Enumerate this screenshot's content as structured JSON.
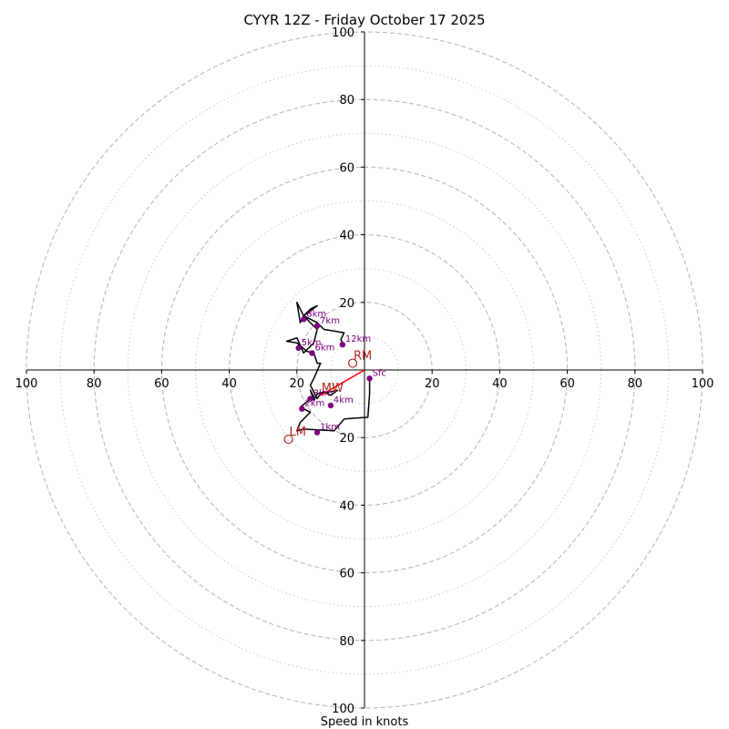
{
  "chart_data": {
    "type": "line",
    "title": "CYYR 12Z - Friday October 17 2025",
    "xlabel": "Speed in knots",
    "ylabel": "",
    "xlim": [
      -100,
      100
    ],
    "ylim": [
      -100,
      100
    ],
    "ring_major": [
      20,
      40,
      60,
      80,
      100
    ],
    "ring_minor": [
      10,
      30,
      50,
      70,
      90
    ],
    "x_tick_values": [
      -100,
      -80,
      -60,
      -40,
      -20,
      20,
      40,
      60,
      80,
      100
    ],
    "x_tick_labels": [
      "100",
      "80",
      "60",
      "40",
      "20",
      "20",
      "40",
      "60",
      "80",
      "100"
    ],
    "y_tick_values": [
      100,
      80,
      60,
      40,
      20,
      -20,
      -40,
      -60,
      -80,
      -100
    ],
    "y_tick_labels": [
      "100",
      "80",
      "60",
      "40",
      "20",
      "20",
      "40",
      "60",
      "80",
      "100"
    ],
    "grid": true,
    "hodograph": {
      "color": "#000000",
      "points": [
        [
          1.5,
          -2.5
        ],
        [
          1.5,
          -7
        ],
        [
          1,
          -14
        ],
        [
          -6,
          -14.5
        ],
        [
          -9,
          -18
        ],
        [
          -18,
          -17.5
        ],
        [
          -20,
          -18
        ],
        [
          -19,
          -15.5
        ],
        [
          -16,
          -12.5
        ],
        [
          -19,
          -11
        ],
        [
          -16.5,
          -9
        ],
        [
          -15,
          -8
        ],
        [
          -16,
          -6
        ],
        [
          -15,
          -9
        ],
        [
          -14,
          -7
        ],
        [
          -12,
          -6.5
        ],
        [
          -10,
          -7.5
        ],
        [
          -8,
          -6
        ],
        [
          -13,
          -7
        ],
        [
          -14,
          -8.5
        ],
        [
          -16,
          -4.5
        ],
        [
          -15,
          -2.5
        ],
        [
          -13,
          2
        ],
        [
          -14,
          2
        ],
        [
          -15,
          5
        ],
        [
          -17,
          5.5
        ],
        [
          -20,
          8
        ],
        [
          -23,
          8.5
        ],
        [
          -20,
          9.5
        ],
        [
          -18,
          5
        ],
        [
          -15,
          8
        ],
        [
          -14,
          12
        ],
        [
          -16,
          14
        ],
        [
          -18,
          16
        ],
        [
          -16,
          18
        ],
        [
          -14,
          19
        ],
        [
          -18,
          16
        ],
        [
          -19,
          14
        ],
        [
          -20,
          20
        ],
        [
          -18,
          16
        ],
        [
          -14,
          14
        ],
        [
          -12,
          12
        ],
        [
          -9,
          11.5
        ],
        [
          -6,
          11
        ],
        [
          -7,
          9
        ],
        [
          -6,
          7
        ]
      ]
    },
    "height_markers": {
      "color": "#800080",
      "points": [
        {
          "label": "Sfc",
          "u": 1.5,
          "v": -2.5
        },
        {
          "label": "1km",
          "u": -14,
          "v": -18.5
        },
        {
          "label": "2km",
          "u": -18.5,
          "v": -11.5
        },
        {
          "label": "3km",
          "u": -16,
          "v": -8.5
        },
        {
          "label": "4km",
          "u": -10,
          "v": -10.5
        },
        {
          "label": "5km",
          "u": -19.5,
          "v": 6.5
        },
        {
          "label": "6km",
          "u": -15.5,
          "v": 5
        },
        {
          "label": "7km",
          "u": -14,
          "v": 13
        },
        {
          "label": "8km",
          "u": -18,
          "v": 15
        },
        {
          "label": "12km",
          "u": -6.5,
          "v": 7.5
        }
      ]
    },
    "storm_motion": {
      "color": "#b22222",
      "line_color": "#ff0000",
      "points": [
        {
          "label": "RM",
          "u": -3.5,
          "v": 2
        },
        {
          "label": "LM",
          "u": -22.5,
          "v": -20.5
        },
        {
          "label": "MW",
          "u": -13,
          "v": -7.5
        }
      ],
      "vector_to": "MW"
    }
  }
}
